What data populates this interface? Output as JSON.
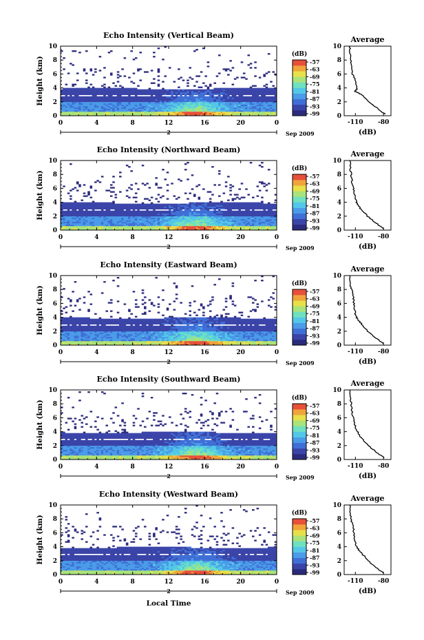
{
  "chart_data": [
    {
      "type": "heatmap",
      "title": "Echo Intensity (Vertical Beam)",
      "ylabel": "Height (km)",
      "x_ticks": [
        "0",
        "4",
        "8",
        "12",
        "16",
        "20",
        "0"
      ],
      "y_ticks": [
        "0",
        "2",
        "4",
        "6",
        "8",
        "10"
      ],
      "date_marker": "2",
      "date_label": "Sep 2009",
      "xlim": [
        0,
        24
      ],
      "ylim": [
        0,
        10
      ],
      "colorbar": {
        "label": "(dB)",
        "ticks": [
          "-57",
          "-63",
          "-69",
          "-75",
          "-81",
          "-87",
          "-93",
          "-99"
        ]
      },
      "average": {
        "title": "Average",
        "xlabel": "(dB)",
        "x_ticks": [
          "-110",
          "-80"
        ],
        "y_ticks": [
          "0",
          "2",
          "4",
          "6",
          "8",
          "10"
        ],
        "profile": [
          [
            0.2,
            -78
          ],
          [
            1,
            -86
          ],
          [
            2,
            -95
          ],
          [
            3,
            -103
          ],
          [
            3.5,
            -110
          ],
          [
            4,
            -108
          ],
          [
            5,
            -110
          ],
          [
            6,
            -113
          ],
          [
            7,
            -114
          ],
          [
            8,
            -115
          ],
          [
            9,
            -116
          ],
          [
            10,
            -116
          ]
        ]
      }
    },
    {
      "type": "heatmap",
      "title": "Echo Intensity (Northward Beam)",
      "ylabel": "Height (km)",
      "x_ticks": [
        "0",
        "4",
        "8",
        "12",
        "16",
        "20",
        "0"
      ],
      "y_ticks": [
        "0",
        "2",
        "4",
        "6",
        "8",
        "10"
      ],
      "date_marker": "2",
      "date_label": "Sep 2009",
      "xlim": [
        0,
        24
      ],
      "ylim": [
        0,
        10
      ],
      "colorbar": {
        "label": "(dB)",
        "ticks": [
          "-57",
          "-63",
          "-69",
          "-75",
          "-81",
          "-87",
          "-93",
          "-99"
        ]
      },
      "average": {
        "title": "Average",
        "xlabel": "(dB)",
        "x_ticks": [
          "-110",
          "-80"
        ],
        "y_ticks": [
          "0",
          "2",
          "4",
          "6",
          "8",
          "10"
        ],
        "profile": [
          [
            0.2,
            -80
          ],
          [
            1,
            -88
          ],
          [
            2,
            -97
          ],
          [
            3,
            -104
          ],
          [
            3.7,
            -108
          ],
          [
            4.5,
            -110
          ],
          [
            5.5,
            -111
          ],
          [
            6.5,
            -113
          ],
          [
            7.5,
            -114
          ],
          [
            8.5,
            -115
          ],
          [
            10,
            -116
          ]
        ]
      }
    },
    {
      "type": "heatmap",
      "title": "Echo Intensity (Eastward Beam)",
      "ylabel": "Height (km)",
      "x_ticks": [
        "0",
        "4",
        "8",
        "12",
        "16",
        "20",
        "0"
      ],
      "y_ticks": [
        "0",
        "2",
        "4",
        "6",
        "8",
        "10"
      ],
      "date_marker": "2",
      "date_label": "Sep 2009",
      "xlim": [
        0,
        24
      ],
      "ylim": [
        0,
        10
      ],
      "colorbar": {
        "label": "(dB)",
        "ticks": [
          "-57",
          "-63",
          "-69",
          "-75",
          "-81",
          "-87",
          "-93",
          "-99"
        ]
      },
      "average": {
        "title": "Average",
        "xlabel": "(dB)",
        "x_ticks": [
          "-110",
          "-80"
        ],
        "y_ticks": [
          "0",
          "2",
          "4",
          "6",
          "8",
          "10"
        ],
        "profile": [
          [
            0.2,
            -80
          ],
          [
            1,
            -88
          ],
          [
            2,
            -97
          ],
          [
            3,
            -103
          ],
          [
            3.8,
            -108
          ],
          [
            4.5,
            -110
          ],
          [
            5.5,
            -111
          ],
          [
            6.5,
            -112
          ],
          [
            7.5,
            -113
          ],
          [
            8.5,
            -115
          ],
          [
            10,
            -116
          ]
        ]
      }
    },
    {
      "type": "heatmap",
      "title": "Echo Intensity (Southward Beam)",
      "ylabel": "Height (km)",
      "x_ticks": [
        "0",
        "4",
        "8",
        "12",
        "16",
        "20",
        "0"
      ],
      "y_ticks": [
        "0",
        "2",
        "4",
        "6",
        "8",
        "10"
      ],
      "date_marker": "2",
      "date_label": "Sep 2009",
      "xlim": [
        0,
        24
      ],
      "ylim": [
        0,
        10
      ],
      "colorbar": {
        "label": "(dB)",
        "ticks": [
          "-57",
          "-63",
          "-69",
          "-75",
          "-81",
          "-87",
          "-93",
          "-99"
        ]
      },
      "average": {
        "title": "Average",
        "xlabel": "(dB)",
        "x_ticks": [
          "-110",
          "-80"
        ],
        "y_ticks": [
          "0",
          "2",
          "4",
          "6",
          "8",
          "10"
        ],
        "profile": [
          [
            0.2,
            -79
          ],
          [
            1,
            -87
          ],
          [
            2,
            -96
          ],
          [
            3,
            -103
          ],
          [
            3.8,
            -107
          ],
          [
            4.5,
            -110
          ],
          [
            5.5,
            -111
          ],
          [
            6.5,
            -113
          ],
          [
            7.5,
            -114
          ],
          [
            8.5,
            -115
          ],
          [
            10,
            -116
          ]
        ]
      }
    },
    {
      "type": "heatmap",
      "title": "Echo Intensity (Westward Beam)",
      "ylabel": "Height (km)",
      "x_ticks": [
        "0",
        "4",
        "8",
        "12",
        "16",
        "20",
        "0"
      ],
      "y_ticks": [
        "0",
        "2",
        "4",
        "6",
        "8",
        "10"
      ],
      "date_marker": "2",
      "date_label": "Sep 2009",
      "xlabel": "Local Time",
      "xlim": [
        0,
        24
      ],
      "ylim": [
        0,
        10
      ],
      "colorbar": {
        "label": "(dB)",
        "ticks": [
          "-57",
          "-63",
          "-69",
          "-75",
          "-81",
          "-87",
          "-93",
          "-99"
        ]
      },
      "average": {
        "title": "Average",
        "xlabel": "(dB)",
        "x_ticks": [
          "-110",
          "-80"
        ],
        "y_ticks": [
          "0",
          "2",
          "4",
          "6",
          "8",
          "10"
        ],
        "profile": [
          [
            0.2,
            -80
          ],
          [
            1,
            -88
          ],
          [
            2,
            -96
          ],
          [
            3,
            -103
          ],
          [
            3.8,
            -108
          ],
          [
            4.5,
            -110
          ],
          [
            5.5,
            -111
          ],
          [
            6.5,
            -112
          ],
          [
            7.5,
            -114
          ],
          [
            8.5,
            -115
          ],
          [
            10,
            -116
          ]
        ]
      }
    }
  ],
  "colors": {
    "colormap": [
      "#2b2b7e",
      "#3a44a8",
      "#3f6fd6",
      "#4a9be8",
      "#53c7e8",
      "#6fe0c0",
      "#a9e37a",
      "#e8e04a",
      "#f0a43a",
      "#e8503a"
    ]
  }
}
